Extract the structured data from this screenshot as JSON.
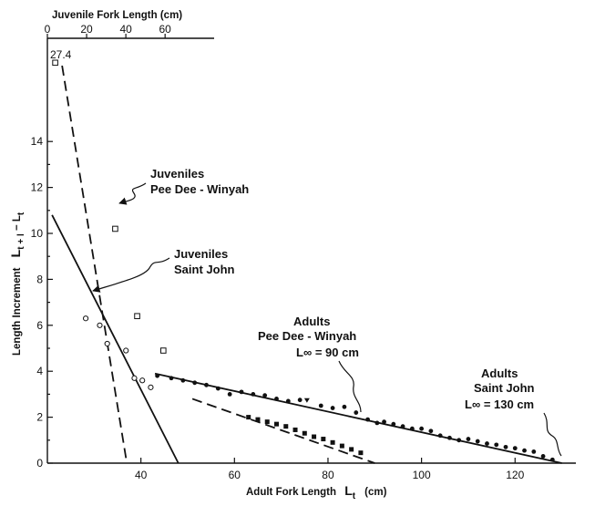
{
  "chart_data": {
    "type": "scatter",
    "xlabel": "Adult Fork Length",
    "xlabel_sym": "L",
    "xlabel_sub": "t",
    "xlabel_unit": "(cm)",
    "x2label": "Juvenile Fork Length (cm)",
    "ylabel": "Length Increment",
    "ylabel_expr": "L",
    "ylabel_sub1": "t + l",
    "ylabel_mid": " − L",
    "ylabel_sub2": "t",
    "xlim": [
      20,
      133
    ],
    "ylim": [
      0,
      15
    ],
    "x_ticks": [
      40,
      60,
      80,
      100,
      120
    ],
    "x_tick_labels": [
      "40",
      "60",
      "80",
      "100",
      "120"
    ],
    "x2lim": [
      0,
      85
    ],
    "x2_ticks": [
      0,
      20,
      40,
      60
    ],
    "x2_tick_labels": [
      "0",
      "20",
      "40",
      "60"
    ],
    "y_ticks": [
      0,
      2,
      4,
      6,
      8,
      10,
      12,
      14
    ],
    "y_tick_labels": [
      "0",
      "2",
      "4",
      "6",
      "8",
      "10",
      "12",
      "14"
    ],
    "offscale_label": "27.4",
    "series": [
      {
        "kind": "points",
        "marker": "open-circle",
        "points": [
          [
            28.2,
            6.3
          ],
          [
            31.2,
            6.0
          ],
          [
            32.8,
            5.2
          ],
          [
            36.8,
            4.9
          ],
          [
            38.6,
            3.7
          ],
          [
            40.3,
            3.6
          ],
          [
            42.1,
            3.3
          ]
        ]
      },
      {
        "kind": "points",
        "marker": "open-square",
        "points": [
          [
            34.5,
            10.2
          ],
          [
            39.2,
            6.4
          ],
          [
            44.8,
            4.9
          ]
        ]
      },
      {
        "kind": "points",
        "marker": "filled-circle",
        "points": [
          [
            43.5,
            3.8
          ],
          [
            46.5,
            3.7
          ],
          [
            49,
            3.6
          ],
          [
            51.5,
            3.5
          ],
          [
            54,
            3.4
          ],
          [
            56.5,
            3.25
          ],
          [
            59,
            3.0
          ],
          [
            61.5,
            3.1
          ],
          [
            64,
            3.0
          ],
          [
            66.5,
            2.95
          ],
          [
            69,
            2.8
          ],
          [
            71.5,
            2.7
          ],
          [
            74,
            2.75
          ],
          [
            78.5,
            2.5
          ],
          [
            81,
            2.4
          ],
          [
            83.5,
            2.45
          ],
          [
            86,
            2.2
          ],
          [
            88.5,
            1.9
          ],
          [
            90.5,
            1.75
          ],
          [
            92,
            1.8
          ],
          [
            94,
            1.7
          ],
          [
            96,
            1.6
          ],
          [
            98,
            1.5
          ],
          [
            100,
            1.5
          ],
          [
            102,
            1.4
          ],
          [
            104,
            1.2
          ],
          [
            106,
            1.1
          ],
          [
            108,
            1.0
          ],
          [
            110,
            1.05
          ],
          [
            112,
            0.95
          ],
          [
            114,
            0.85
          ],
          [
            116,
            0.8
          ],
          [
            118,
            0.7
          ],
          [
            120,
            0.65
          ],
          [
            122,
            0.55
          ],
          [
            124,
            0.5
          ],
          [
            126,
            0.3
          ],
          [
            128,
            0.15
          ]
        ]
      },
      {
        "kind": "points",
        "marker": "filled-square",
        "points": [
          [
            63,
            2.0
          ],
          [
            65,
            1.9
          ],
          [
            67,
            1.8
          ],
          [
            69,
            1.7
          ],
          [
            71,
            1.6
          ],
          [
            73,
            1.45
          ],
          [
            75,
            1.3
          ],
          [
            77,
            1.15
          ],
          [
            79,
            1.05
          ],
          [
            81,
            0.9
          ],
          [
            83,
            0.75
          ],
          [
            85,
            0.6
          ],
          [
            87,
            0.45
          ]
        ]
      },
      {
        "kind": "points",
        "marker": "filled-triangle",
        "points": [
          [
            75.5,
            2.75
          ]
        ]
      },
      {
        "kind": "line",
        "style": "solid",
        "points": [
          [
            21,
            10.8
          ],
          [
            48,
            0
          ]
        ]
      },
      {
        "kind": "line",
        "style": "dashed",
        "axis": "juvenile",
        "points": [
          [
            7.5,
            17.3
          ],
          [
            40.5,
            0
          ]
        ]
      },
      {
        "kind": "line",
        "style": "solid",
        "points": [
          [
            43,
            3.9
          ],
          [
            130,
            0
          ]
        ]
      },
      {
        "kind": "line",
        "style": "dashed",
        "points": [
          [
            51,
            2.8
          ],
          [
            90,
            0
          ]
        ]
      },
      {
        "kind": "offscale-point",
        "marker": "open-square",
        "axis": "juvenile",
        "point": [
          4,
          27.4
        ]
      }
    ],
    "annotations": [
      {
        "lines": [
          "Juveniles",
          "Pee Dee - Winyah"
        ]
      },
      {
        "lines": [
          "Juveniles",
          "Saint John"
        ]
      },
      {
        "lines": [
          "Adults",
          "Pee Dee - Winyah",
          "L∞ = 90 cm"
        ]
      },
      {
        "lines": [
          "Adults",
          "Saint John",
          "L∞ = 130 cm"
        ]
      }
    ]
  }
}
